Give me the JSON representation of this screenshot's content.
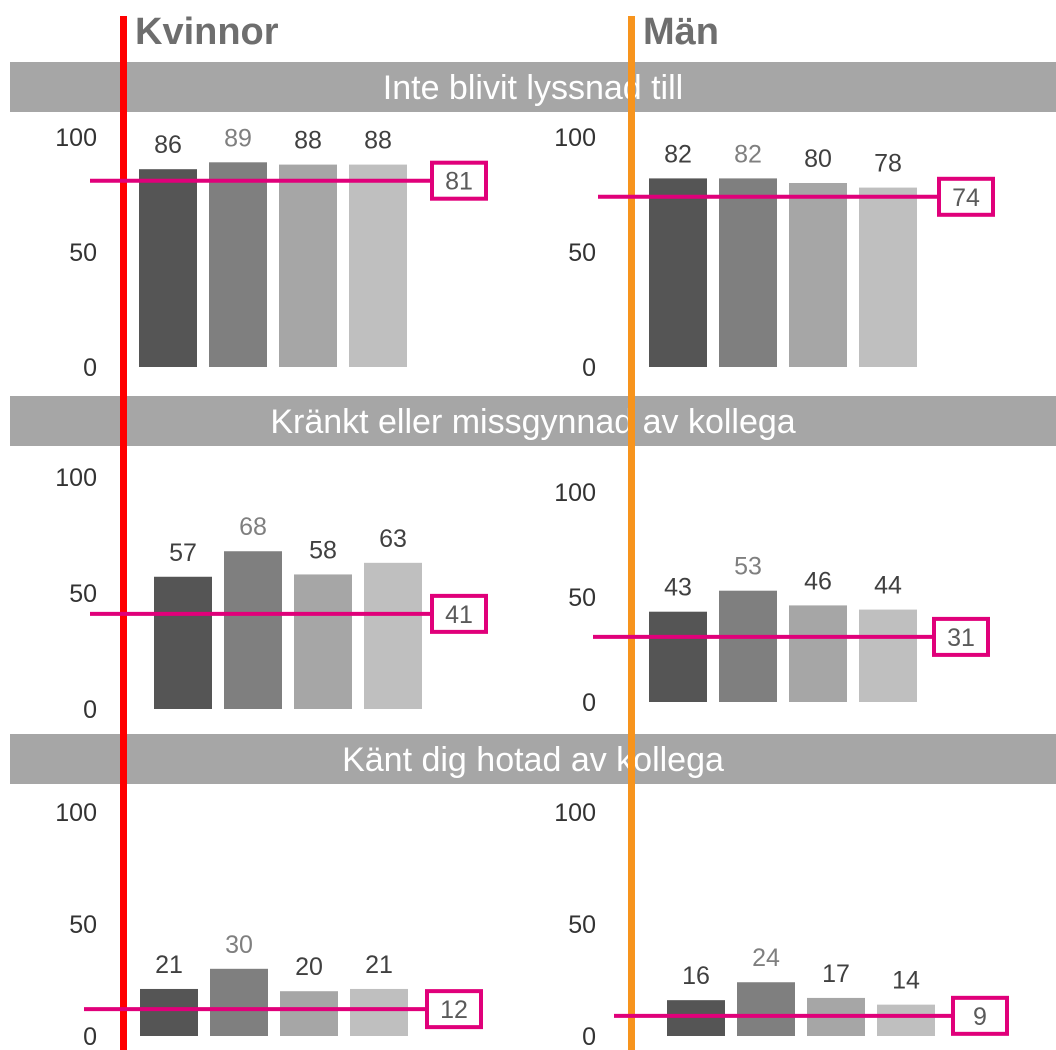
{
  "columns": [
    {
      "title": "Kvinnor",
      "color": "#ff0000"
    },
    {
      "title": "Män",
      "color": "#f7941d"
    }
  ],
  "colors": {
    "header_bg": "#a6a6a6",
    "ref_line": "#e0007a",
    "bars": [
      "#555555",
      "#7f7f7f",
      "#a6a6a6",
      "#bfbfbf"
    ],
    "value_labels": [
      "#404040",
      "#7f7f7f",
      "#404040",
      "#404040"
    ]
  },
  "chart_data": [
    {
      "type": "bar",
      "title": "Inte blivit lyssnad till",
      "panel": "Kvinnor",
      "values": [
        86,
        89,
        88,
        88
      ],
      "reference": 81,
      "ylim": [
        0,
        100
      ],
      "yticks": [
        "0",
        "50",
        "100"
      ]
    },
    {
      "type": "bar",
      "title": "Inte blivit lyssnad till",
      "panel": "Män",
      "values": [
        82,
        82,
        80,
        78
      ],
      "reference": 74,
      "ylim": [
        0,
        100
      ],
      "yticks": [
        "0",
        "50",
        "100"
      ]
    },
    {
      "type": "bar",
      "title": "Kränkt eller missgynnad av kollega",
      "panel": "Kvinnor",
      "values": [
        57,
        68,
        58,
        63
      ],
      "reference": 41,
      "ylim": [
        0,
        100
      ],
      "yticks": [
        "0",
        "50",
        "100"
      ]
    },
    {
      "type": "bar",
      "title": "Kränkt eller missgynnad av kollega",
      "panel": "Män",
      "values": [
        43,
        53,
        46,
        44
      ],
      "reference": 31,
      "ylim": [
        0,
        100
      ],
      "yticks": [
        "0",
        "50",
        "100"
      ]
    },
    {
      "type": "bar",
      "title": "Känt dig hotad av kollega",
      "panel": "Kvinnor",
      "values": [
        21,
        30,
        20,
        21
      ],
      "reference": 12,
      "ylim": [
        0,
        100
      ],
      "yticks": [
        "0",
        "50",
        "100"
      ]
    },
    {
      "type": "bar",
      "title": "Känt dig hotad av kollega",
      "panel": "Män",
      "values": [
        16,
        24,
        17,
        14
      ],
      "reference": 9,
      "ylim": [
        0,
        100
      ],
      "yticks": [
        "0",
        "50",
        "100"
      ]
    }
  ]
}
